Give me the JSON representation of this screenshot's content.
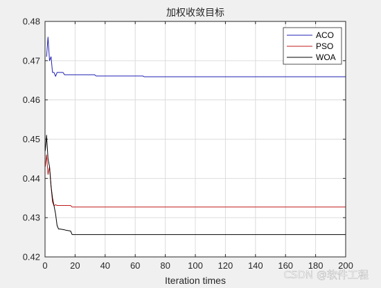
{
  "colors": {
    "aco": "#1f1fb4",
    "pso": "#c01818",
    "woa": "#000000",
    "grid": "#dcdcdc",
    "axes": "#262626"
  },
  "chart_data": {
    "type": "line",
    "title": "加权收敛目标",
    "xlabel": "Iteration times",
    "ylabel": "",
    "xlim": [
      0,
      200
    ],
    "ylim": [
      0.42,
      0.48
    ],
    "xticks": [
      0,
      20,
      40,
      60,
      80,
      100,
      120,
      140,
      160,
      180,
      200
    ],
    "yticks": [
      0.42,
      0.43,
      0.44,
      0.45,
      0.46,
      0.47,
      0.48
    ],
    "grid": true,
    "legend_position": "top-right",
    "series": [
      {
        "name": "ACO",
        "color_key": "aco",
        "x": [
          1,
          2,
          3,
          4,
          5,
          6,
          7,
          8,
          9,
          12,
          13,
          33,
          34,
          65,
          66,
          200
        ],
        "y": [
          0.471,
          0.476,
          0.47,
          0.471,
          0.467,
          0.467,
          0.466,
          0.467,
          0.467,
          0.467,
          0.4664,
          0.4664,
          0.4661,
          0.4661,
          0.4659,
          0.4659
        ]
      },
      {
        "name": "PSO",
        "color_key": "pso",
        "x": [
          1,
          2,
          3,
          4,
          5,
          6,
          7,
          8,
          17,
          18,
          200
        ],
        "y": [
          0.446,
          0.441,
          0.443,
          0.438,
          0.434,
          0.433,
          0.4333,
          0.4331,
          0.4331,
          0.4327,
          0.4327
        ],
        "x_min_override": 0.2,
        "start_y": 0.443
      },
      {
        "name": "WOA",
        "color_key": "woa",
        "x": [
          0.2,
          1,
          2,
          3,
          4,
          5,
          6,
          7,
          8,
          9,
          10,
          13,
          14,
          17,
          18,
          200
        ],
        "y": [
          0.447,
          0.451,
          0.445,
          0.443,
          0.438,
          0.435,
          0.433,
          0.431,
          0.428,
          0.4271,
          0.4271,
          0.4269,
          0.4268,
          0.4266,
          0.4257,
          0.4257
        ]
      }
    ]
  },
  "watermark": "CSDN @软件工程"
}
